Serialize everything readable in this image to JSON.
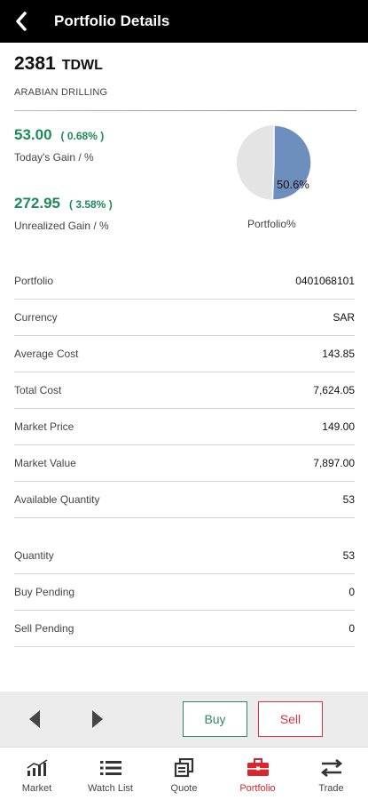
{
  "header": {
    "title": "Portfolio Details"
  },
  "stock": {
    "code": "2381",
    "market": "TDWL",
    "name": "ARABIAN DRILLING"
  },
  "todays_gain": {
    "value": "53.00",
    "percent": "( 0.68% )",
    "label": "Today's Gain  /  %"
  },
  "unrealized_gain": {
    "value": "272.95",
    "percent": "( 3.58% )",
    "label": "Unrealized Gain  /  %"
  },
  "portfolio_pie": {
    "percent_text": "50.6%",
    "fraction": 0.506,
    "label": "Portfolio%",
    "slice_color": "#6e8fbd",
    "rest_color": "#e4e4e4"
  },
  "details": [
    {
      "label": "Portfolio",
      "value": "0401068101"
    },
    {
      "label": "Currency",
      "value": "SAR"
    },
    {
      "label": "Average Cost",
      "value": "143.85"
    },
    {
      "label": "Total Cost",
      "value": "7,624.05"
    },
    {
      "label": "Market Price",
      "value": "149.00"
    },
    {
      "label": "Market Value",
      "value": "7,897.00"
    },
    {
      "label": "Available Quantity",
      "value": "53"
    }
  ],
  "quantities": [
    {
      "label": "Quantity",
      "value": "53"
    },
    {
      "label": "Buy Pending",
      "value": "0"
    },
    {
      "label": "Sell Pending",
      "value": "0"
    }
  ],
  "actions": {
    "buy_label": "Buy",
    "sell_label": "Sell"
  },
  "nav": {
    "items": [
      {
        "label": "Market",
        "icon": "market-chart-icon"
      },
      {
        "label": "Watch List",
        "icon": "watch-list-icon"
      },
      {
        "label": "Quote",
        "icon": "quote-icon"
      },
      {
        "label": "Portfolio",
        "icon": "briefcase-icon"
      },
      {
        "label": "Trade",
        "icon": "trade-arrows-icon"
      }
    ],
    "active": "Portfolio",
    "active_color": "#d9262e"
  },
  "colors": {
    "gain_green": "#1d8a5a",
    "buy_green": "#2f8a64",
    "sell_red": "#d8343f"
  }
}
